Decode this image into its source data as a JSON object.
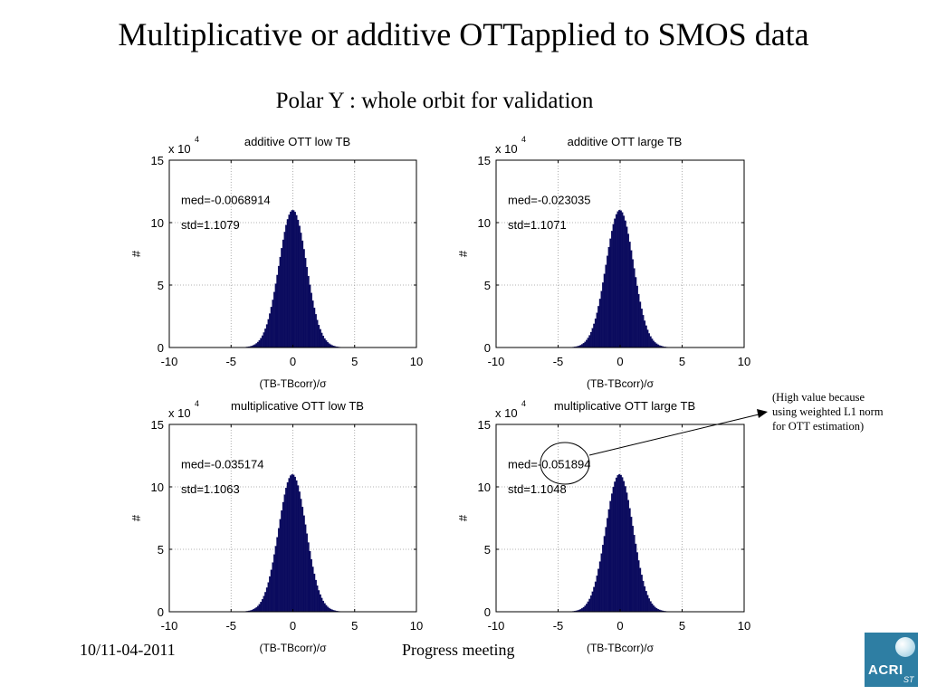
{
  "slide": {
    "title": "Multiplicative or additive OTTapplied to SMOS data",
    "subtitle": "Polar Y : whole orbit for validation",
    "footer_date": "10/11-04-2011",
    "footer_center": "Progress meeting",
    "annotation": {
      "line1": "(High value because",
      "line2": "using weighted L1 norm",
      "line3": "for OTT estimation)"
    },
    "logo": {
      "text": "ACRI",
      "sub": "ST"
    }
  },
  "chart_data": [
    {
      "type": "bar",
      "title": "additive OTT low TB",
      "xlabel": "(TB-TBcorr)/σ",
      "ylabel": "#",
      "scale_label": "x 10",
      "scale_exponent": "4",
      "xlim": [
        -10,
        10
      ],
      "ylim": [
        0,
        15
      ],
      "xticks": [
        "-10",
        "-5",
        "0",
        "5",
        "10"
      ],
      "yticks": [
        "0",
        "5",
        "10",
        "15"
      ],
      "grid": true,
      "stat_median": "med=-0.0068914",
      "stat_std": "std=1.1079",
      "median": -0.0068914,
      "std": 1.1079,
      "peak": 11.0
    },
    {
      "type": "bar",
      "title": "additive OTT large TB",
      "xlabel": "(TB-TBcorr)/σ",
      "ylabel": "#",
      "scale_label": "x 10",
      "scale_exponent": "4",
      "xlim": [
        -10,
        10
      ],
      "ylim": [
        0,
        15
      ],
      "xticks": [
        "-10",
        "-5",
        "0",
        "5",
        "10"
      ],
      "yticks": [
        "0",
        "5",
        "10",
        "15"
      ],
      "grid": true,
      "stat_median": "med=-0.023035",
      "stat_std": "std=1.1071",
      "median": -0.023035,
      "std": 1.1071,
      "peak": 11.0
    },
    {
      "type": "bar",
      "title": "multiplicative OTT low TB",
      "xlabel": "(TB-TBcorr)/σ",
      "ylabel": "#",
      "scale_label": "x 10",
      "scale_exponent": "4",
      "xlim": [
        -10,
        10
      ],
      "ylim": [
        0,
        15
      ],
      "xticks": [
        "-10",
        "-5",
        "0",
        "5",
        "10"
      ],
      "yticks": [
        "0",
        "5",
        "10",
        "15"
      ],
      "grid": true,
      "stat_median": "med=-0.035174",
      "stat_std": "std=1.1063",
      "median": -0.035174,
      "std": 1.1063,
      "peak": 11.0
    },
    {
      "type": "bar",
      "title": "multiplicative OTT large TB",
      "xlabel": "(TB-TBcorr)/σ",
      "ylabel": "#",
      "scale_label": "x 10",
      "scale_exponent": "4",
      "xlim": [
        -10,
        10
      ],
      "ylim": [
        0,
        15
      ],
      "xticks": [
        "-10",
        "-5",
        "0",
        "5",
        "10"
      ],
      "yticks": [
        "0",
        "5",
        "10",
        "15"
      ],
      "grid": true,
      "stat_median": "med=-0.051894",
      "stat_std": "std=1.1048",
      "median": -0.051894,
      "std": 1.1048,
      "peak": 11.0
    }
  ],
  "colors": {
    "bar_fill": "#0b0b5e",
    "grid": "#9a9a9a",
    "axis": "#000000",
    "logo_bg": "#2e7ea3"
  }
}
